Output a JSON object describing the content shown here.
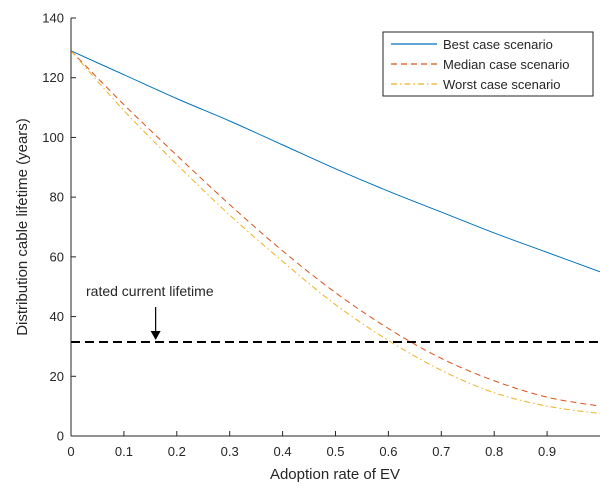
{
  "chart_data": {
    "type": "line",
    "xlabel": "Adoption rate of EV",
    "ylabel": "Distribution cable lifetime (years)",
    "xlim": [
      0,
      1
    ],
    "ylim": [
      0,
      140
    ],
    "xticks": [
      "0",
      "0.1",
      "0.2",
      "0.3",
      "0.4",
      "0.5",
      "0.6",
      "0.7",
      "0.8",
      "0.9"
    ],
    "xtick_values": [
      0,
      0.1,
      0.2,
      0.3,
      0.4,
      0.5,
      0.6,
      0.7,
      0.8,
      0.9
    ],
    "yticks": [
      "0",
      "20",
      "40",
      "60",
      "80",
      "100",
      "120",
      "140"
    ],
    "ytick_values": [
      0,
      20,
      40,
      60,
      80,
      100,
      120,
      140
    ],
    "grid": false,
    "legend_position": "top-right",
    "x": [
      0,
      0.1,
      0.2,
      0.3,
      0.4,
      0.5,
      0.6,
      0.7,
      0.8,
      0.9,
      1.0
    ],
    "series": [
      {
        "name": "Best case scenario",
        "color": "#0072BD",
        "style": "solid",
        "values": [
          129,
          121,
          113,
          105.5,
          97.5,
          89.5,
          82,
          75,
          68,
          61.5,
          55
        ]
      },
      {
        "name": "Median case scenario",
        "color": "#D95319",
        "style": "dashed",
        "values": [
          129,
          111,
          94,
          77.5,
          62,
          48,
          36,
          26,
          18.5,
          13,
          10
        ]
      },
      {
        "name": "Worst case scenario",
        "color": "#EDB120",
        "style": "dashdot",
        "values": [
          129,
          109,
          91,
          74,
          58.5,
          44,
          32,
          22,
          14.5,
          10,
          7.5
        ]
      }
    ],
    "reference_line": {
      "y": 31.5,
      "color": "#000000",
      "style": "dashed"
    },
    "annotation": {
      "text": "rated current lifetime",
      "x": 0.16,
      "y": 31.5
    }
  }
}
